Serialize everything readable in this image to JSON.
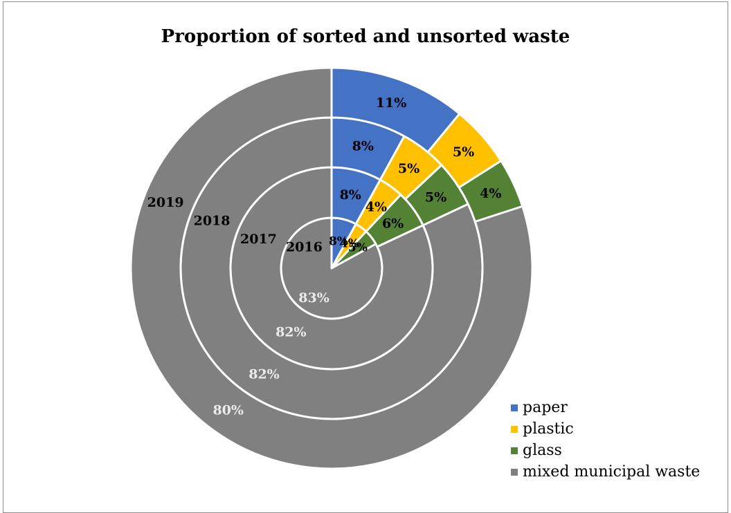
{
  "chart_data": {
    "type": "donut",
    "title": "Proportion of sorted and unsorted waste",
    "categories": [
      "paper",
      "plastic",
      "glass",
      "mixed municipal waste"
    ],
    "colors": [
      "#4472c4",
      "#ffc000",
      "#548235",
      "#808080"
    ],
    "rings": [
      {
        "year": "2016",
        "values": [
          8,
          4,
          5,
          83
        ],
        "labels": [
          "8%",
          "4%",
          "5%",
          "83%"
        ]
      },
      {
        "year": "2017",
        "values": [
          8,
          4,
          6,
          82
        ],
        "labels": [
          "8%",
          "4%",
          "6%",
          "82%"
        ]
      },
      {
        "year": "2018",
        "values": [
          8,
          5,
          5,
          82
        ],
        "labels": [
          "8%",
          "5%",
          "5%",
          "82%"
        ]
      },
      {
        "year": "2019",
        "values": [
          11,
          5,
          4,
          80
        ],
        "labels": [
          "11%",
          "5%",
          "4%",
          "80%"
        ]
      }
    ],
    "legend_position": "bottom-right"
  }
}
